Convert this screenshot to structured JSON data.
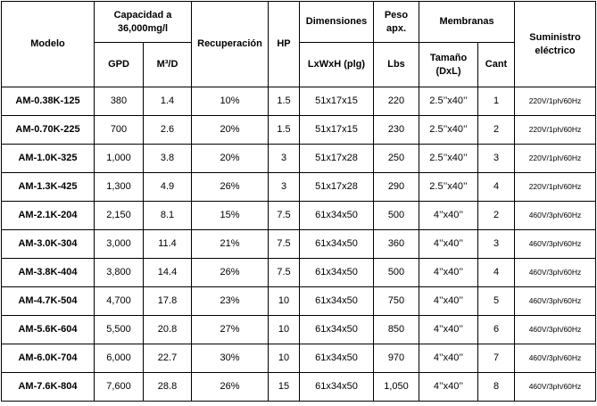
{
  "headers": {
    "modelo": "Modelo",
    "capacidad": "Capacidad a 36,000mg/l",
    "gpd": "GPD",
    "m3d": "M³/D",
    "recuperacion": "Recuperación",
    "hp": "HP",
    "dimensiones": "Dimensiones",
    "lxwxh": "LxWxH (plg)",
    "peso": "Peso apx.",
    "lbs": "Lbs",
    "membranas": "Membranas",
    "tamano": "Tamaño (DxL)",
    "cant": "Cant",
    "suministro": "Suministro eléctrico"
  },
  "rows": [
    {
      "modelo": "AM-0.38K-125",
      "gpd": "380",
      "m3d": "1.4",
      "recuperacion": "10%",
      "hp": "1.5",
      "dimensiones": "51x17x15",
      "lbs": "220",
      "tamano": "2.5’’x40’’",
      "cant": "1",
      "suministro": "220V/1ph/60Hz"
    },
    {
      "modelo": "AM-0.70K-225",
      "gpd": "700",
      "m3d": "2.6",
      "recuperacion": "20%",
      "hp": "1.5",
      "dimensiones": "51x17x15",
      "lbs": "230",
      "tamano": "2.5’’x40’’",
      "cant": "2",
      "suministro": "220V/1ph/60Hz"
    },
    {
      "modelo": "AM-1.0K-325",
      "gpd": "1,000",
      "m3d": "3.8",
      "recuperacion": "20%",
      "hp": "3",
      "dimensiones": "51x17x28",
      "lbs": "250",
      "tamano": "2.5’’x40’’",
      "cant": "3",
      "suministro": "220V/1ph/60Hz"
    },
    {
      "modelo": "AM-1.3K-425",
      "gpd": "1,300",
      "m3d": "4.9",
      "recuperacion": "26%",
      "hp": "3",
      "dimensiones": "51x17x28",
      "lbs": "290",
      "tamano": "2.5’’x40’’",
      "cant": "4",
      "suministro": "220V/1ph/60Hz"
    },
    {
      "modelo": "AM-2.1K-204",
      "gpd": "2,150",
      "m3d": "8.1",
      "recuperacion": "15%",
      "hp": "7.5",
      "dimensiones": "61x34x50",
      "lbs": "500",
      "tamano": "4’’x40’’",
      "cant": "2",
      "suministro": "460V/3ph/60Hz"
    },
    {
      "modelo": "AM-3.0K-304",
      "gpd": "3,000",
      "m3d": "11.4",
      "recuperacion": "21%",
      "hp": "7.5",
      "dimensiones": "61x34x50",
      "lbs": "360",
      "tamano": "4’’x40’’",
      "cant": "3",
      "suministro": "460V/3ph/60Hz"
    },
    {
      "modelo": "AM-3.8K-404",
      "gpd": "3,800",
      "m3d": "14.4",
      "recuperacion": "26%",
      "hp": "7.5",
      "dimensiones": "61x34x50",
      "lbs": "500",
      "tamano": "4’’x40’’",
      "cant": "4",
      "suministro": "460V/3ph/60Hz"
    },
    {
      "modelo": "AM-4.7K-504",
      "gpd": "4,700",
      "m3d": "17.8",
      "recuperacion": "23%",
      "hp": "10",
      "dimensiones": "61x34x50",
      "lbs": "750",
      "tamano": "4’’x40’’",
      "cant": "5",
      "suministro": "460V/3ph/60Hz"
    },
    {
      "modelo": "AM-5.6K-604",
      "gpd": "5,500",
      "m3d": "20.8",
      "recuperacion": "27%",
      "hp": "10",
      "dimensiones": "61x34x50",
      "lbs": "850",
      "tamano": "4’’x40’’",
      "cant": "6",
      "suministro": "460V/3ph/60Hz"
    },
    {
      "modelo": "AM-6.0K-704",
      "gpd": "6,000",
      "m3d": "22.7",
      "recuperacion": "30%",
      "hp": "10",
      "dimensiones": "61x34x50",
      "lbs": "970",
      "tamano": "4’’x40’’",
      "cant": "7",
      "suministro": "460V/3ph/60Hz"
    },
    {
      "modelo": "AM-7.6K-804",
      "gpd": "7,600",
      "m3d": "28.8",
      "recuperacion": "26%",
      "hp": "15",
      "dimensiones": "61x34x50",
      "lbs": "1,050",
      "tamano": "4’’x40’’",
      "cant": "8",
      "suministro": "460V/3ph/60Hz"
    }
  ]
}
